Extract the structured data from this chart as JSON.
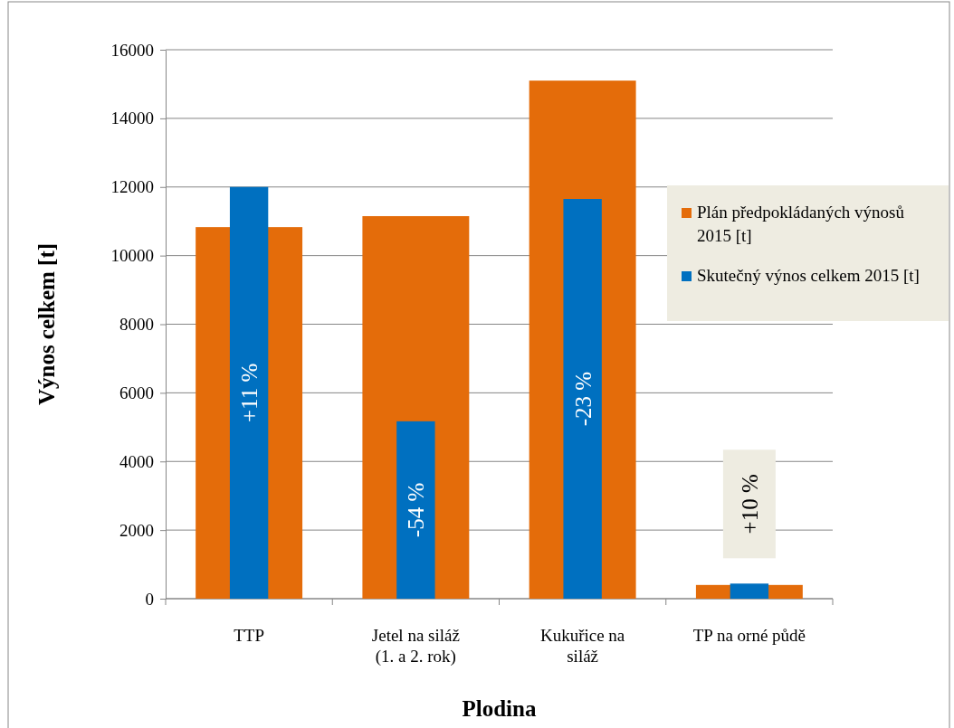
{
  "chart_data": {
    "type": "bar",
    "xlabel": "Plodina",
    "ylabel": "Výnos celkem [t]",
    "categories": [
      "TTP",
      "Jetel na siláž\n(1. a 2. rok)",
      "Kukuřice na\nsiláž",
      "TP na orné půdě"
    ],
    "series": [
      {
        "name": "Plán předpokládaných výnosů 2015 [t]",
        "color": "#e46c0a",
        "values": [
          10830,
          11150,
          15100,
          400
        ]
      },
      {
        "name": "Skutečný výnos celkem 2015 [t]",
        "color": "#0070c0",
        "values": [
          12000,
          5170,
          11650,
          440
        ]
      }
    ],
    "annotations": [
      "+11 %",
      "-54 %",
      "-23 %",
      "+10 %"
    ],
    "ylim": [
      0,
      16000
    ],
    "yticks": [
      0,
      2000,
      4000,
      6000,
      8000,
      10000,
      12000,
      14000,
      16000
    ],
    "grid": "y",
    "legend": "right"
  }
}
